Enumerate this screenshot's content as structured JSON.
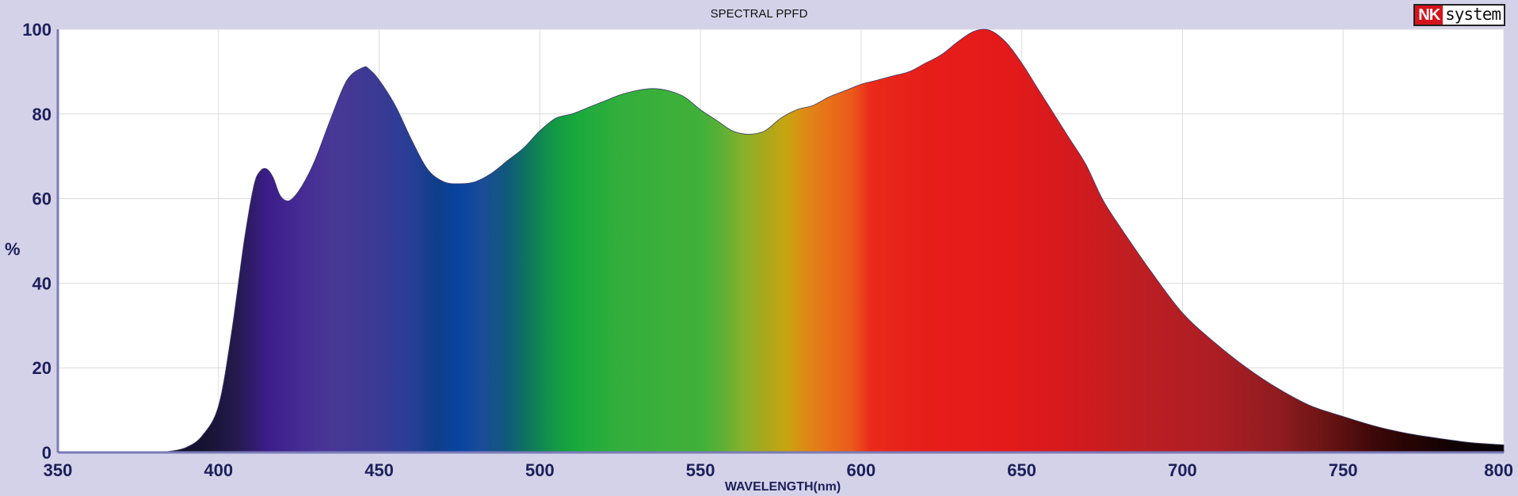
{
  "header": {
    "logo_text_red": "NK",
    "logo_text_black": "system",
    "logo_colors": {
      "red": "#d4141c",
      "border": "#222222"
    }
  },
  "chart_data": {
    "type": "area",
    "title": "SPECTRAL PPFD",
    "xlabel": "WAVELENGTH(nm)",
    "ylabel": "%",
    "xlim": [
      350,
      800
    ],
    "ylim": [
      0,
      100
    ],
    "xticks": [
      350,
      400,
      450,
      500,
      550,
      600,
      650,
      700,
      750,
      800
    ],
    "yticks": [
      0,
      20,
      40,
      60,
      80,
      100
    ],
    "grid": true,
    "fill": "visible-spectrum gradient",
    "background": "#d4d2e8",
    "x": [
      350,
      370,
      380,
      385,
      390,
      395,
      400,
      404,
      408,
      411,
      413,
      415,
      417,
      419,
      421,
      423,
      426,
      430,
      435,
      440,
      445,
      447,
      450,
      455,
      460,
      465,
      470,
      475,
      480,
      485,
      490,
      495,
      500,
      505,
      510,
      515,
      520,
      525,
      530,
      535,
      540,
      545,
      550,
      555,
      560,
      565,
      570,
      575,
      580,
      585,
      590,
      595,
      600,
      605,
      610,
      615,
      620,
      625,
      630,
      635,
      640,
      645,
      650,
      655,
      660,
      665,
      670,
      675,
      680,
      690,
      700,
      710,
      720,
      730,
      740,
      750,
      760,
      770,
      780,
      790,
      800
    ],
    "y": [
      0,
      0,
      0,
      0.3,
      1.2,
      4,
      11,
      28,
      50,
      63,
      66.5,
      67,
      65,
      61,
      59.5,
      60,
      63,
      69,
      79,
      88,
      91,
      90.5,
      88,
      82,
      74,
      67,
      64,
      63.5,
      64,
      66,
      69,
      72,
      76,
      79,
      80,
      81.5,
      83,
      84.5,
      85.5,
      86,
      85.5,
      84,
      81,
      78.5,
      76,
      75.2,
      76,
      79,
      81,
      82,
      84,
      85.5,
      87,
      88,
      89,
      90,
      92,
      94,
      97,
      99.5,
      99.8,
      97,
      92,
      86,
      80,
      74,
      68,
      60,
      54,
      43,
      33,
      26,
      20,
      15,
      11,
      8.5,
      6.2,
      4.5,
      3.3,
      2.3,
      1.8
    ]
  }
}
